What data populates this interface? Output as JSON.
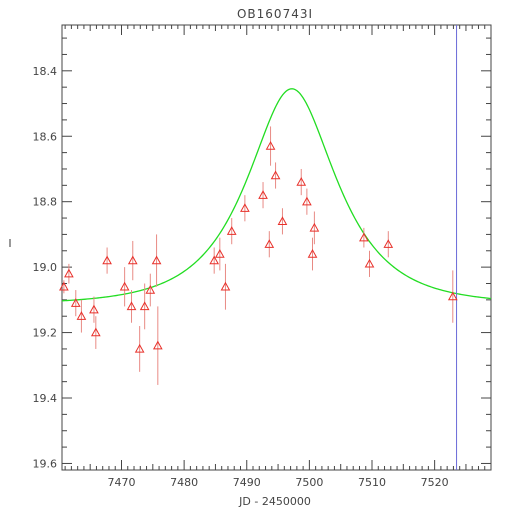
{
  "chart_data": {
    "type": "scatter",
    "title": "OB160743I",
    "xlabel": "JD - 2450000",
    "ylabel": "I",
    "xlim": [
      7460.5,
      7529
    ],
    "ylim": [
      19.62,
      18.26
    ],
    "y_inverted": true,
    "x_ticks": [
      7470,
      7480,
      7490,
      7500,
      7510,
      7520
    ],
    "x_tick_labels": [
      "7470",
      "7480",
      "7490",
      "7500",
      "7510",
      "7520"
    ],
    "y_ticks": [
      18.4,
      18.6,
      18.8,
      19.0,
      19.2,
      19.4,
      19.6
    ],
    "y_tick_labels": [
      "18.4",
      "18.6",
      "18.8",
      "19.0",
      "19.2",
      "19.4",
      "19.6"
    ],
    "grid": false,
    "marker": "open-triangle",
    "colors": {
      "points": "#e8302a",
      "errorbars": "#e88a84",
      "model": "#22dd22",
      "vline": "#6a6ad8",
      "axes": "#444444"
    },
    "points": [
      {
        "x": 7460.8,
        "y": 19.06,
        "err": 0.02
      },
      {
        "x": 7461.6,
        "y": 19.02,
        "err": 0.03
      },
      {
        "x": 7462.7,
        "y": 19.11,
        "err": 0.04
      },
      {
        "x": 7463.6,
        "y": 19.15,
        "err": 0.05
      },
      {
        "x": 7465.6,
        "y": 19.13,
        "err": 0.04
      },
      {
        "x": 7465.9,
        "y": 19.2,
        "err": 0.05
      },
      {
        "x": 7467.7,
        "y": 18.98,
        "err": 0.04
      },
      {
        "x": 7470.5,
        "y": 19.06,
        "err": 0.06
      },
      {
        "x": 7471.6,
        "y": 19.12,
        "err": 0.05
      },
      {
        "x": 7471.8,
        "y": 18.98,
        "err": 0.06
      },
      {
        "x": 7472.9,
        "y": 19.25,
        "err": 0.07
      },
      {
        "x": 7473.7,
        "y": 19.12,
        "err": 0.07
      },
      {
        "x": 7474.6,
        "y": 19.07,
        "err": 0.05
      },
      {
        "x": 7475.6,
        "y": 18.98,
        "err": 0.08
      },
      {
        "x": 7475.8,
        "y": 19.24,
        "err": 0.12
      },
      {
        "x": 7484.8,
        "y": 18.98,
        "err": 0.04
      },
      {
        "x": 7485.7,
        "y": 18.96,
        "err": 0.05
      },
      {
        "x": 7486.6,
        "y": 19.06,
        "err": 0.07
      },
      {
        "x": 7487.6,
        "y": 18.89,
        "err": 0.04
      },
      {
        "x": 7489.7,
        "y": 18.82,
        "err": 0.04
      },
      {
        "x": 7492.6,
        "y": 18.78,
        "err": 0.04
      },
      {
        "x": 7493.6,
        "y": 18.93,
        "err": 0.04
      },
      {
        "x": 7493.8,
        "y": 18.63,
        "err": 0.06
      },
      {
        "x": 7494.6,
        "y": 18.72,
        "err": 0.04
      },
      {
        "x": 7495.7,
        "y": 18.86,
        "err": 0.04
      },
      {
        "x": 7498.7,
        "y": 18.74,
        "err": 0.04
      },
      {
        "x": 7499.6,
        "y": 18.8,
        "err": 0.04
      },
      {
        "x": 7500.5,
        "y": 18.96,
        "err": 0.05
      },
      {
        "x": 7500.8,
        "y": 18.88,
        "err": 0.05
      },
      {
        "x": 7508.7,
        "y": 18.91,
        "err": 0.03
      },
      {
        "x": 7509.6,
        "y": 18.99,
        "err": 0.04
      },
      {
        "x": 7512.6,
        "y": 18.93,
        "err": 0.04
      },
      {
        "x": 7522.9,
        "y": 19.09,
        "err": 0.08
      }
    ],
    "model": {
      "type": "paczynski",
      "t0": 7497.2,
      "tE": 11.0,
      "u0": 0.62,
      "I_base": 19.115,
      "blend_fraction": 1.0
    },
    "vline_x": 7523.5
  }
}
